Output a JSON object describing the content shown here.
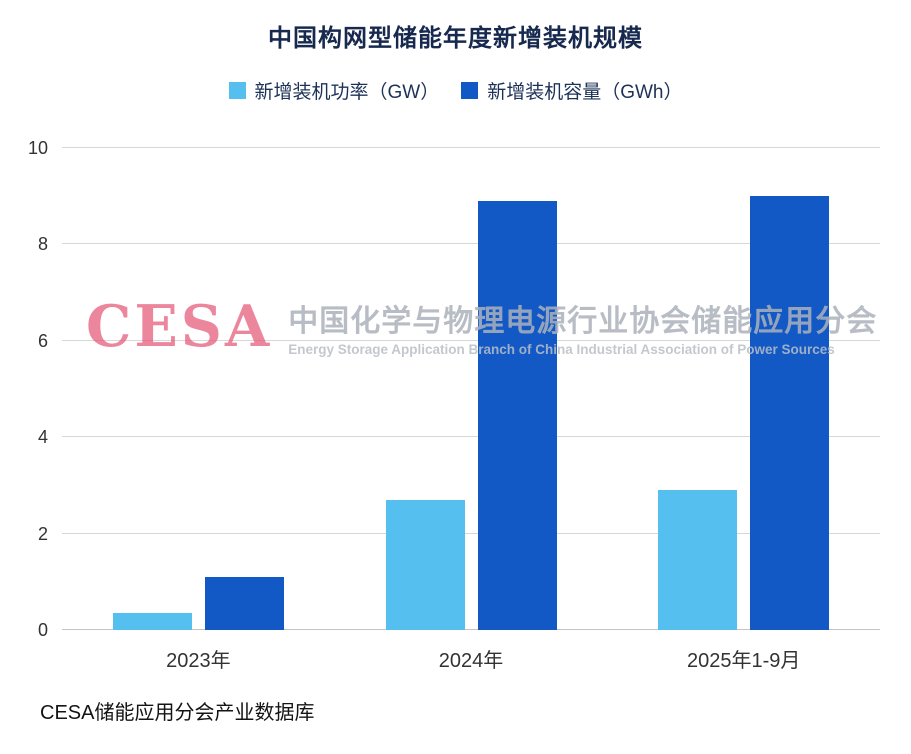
{
  "title": "中国构网型储能年度新增装机规模",
  "legend": [
    {
      "label": "新增装机功率（GW）",
      "color": "#55BFEF"
    },
    {
      "label": "新增装机容量（GWh）",
      "color": "#1259C6"
    }
  ],
  "chart_data": {
    "type": "bar",
    "title": "中国构网型储能年度新增装机规模",
    "categories": [
      "2023年",
      "2024年",
      "2025年1-9月"
    ],
    "series": [
      {
        "name": "新增装机功率（GW）",
        "color": "#55BFEF",
        "values": [
          0.35,
          2.7,
          2.9
        ]
      },
      {
        "name": "新增装机容量（GWh）",
        "color": "#1259C6",
        "values": [
          1.1,
          8.9,
          9.0
        ]
      }
    ],
    "xlabel": "",
    "ylabel": "",
    "ylim": [
      0,
      10
    ],
    "yticks": [
      0,
      2,
      4,
      6,
      8,
      10
    ],
    "grid": true,
    "legend_position": "top"
  },
  "watermark": {
    "logo": "CESA",
    "cn": "中国化学与物理电源行业协会储能应用分会",
    "en": "Energy Storage Application Branch of China Industrial Association of Power Sources"
  },
  "source": "CESA储能应用分会产业数据库"
}
